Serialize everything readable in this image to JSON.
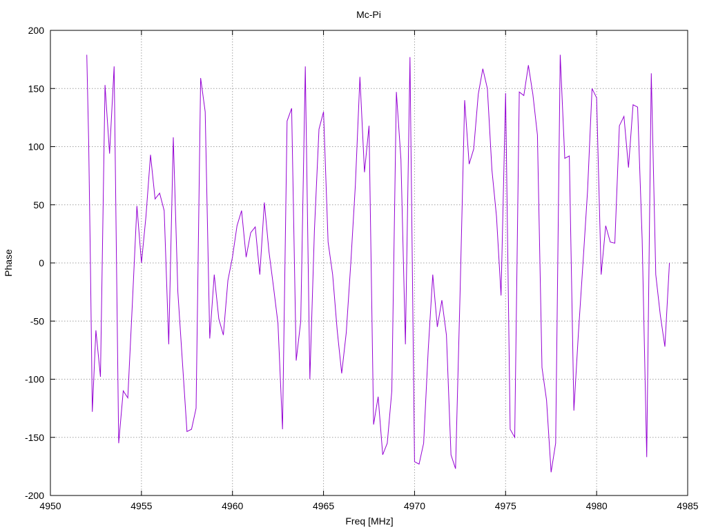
{
  "chart_data": {
    "type": "line",
    "title": "Mc-Pi",
    "xlabel": "Freq [MHz]",
    "ylabel": "Phase",
    "xlim": [
      4950,
      4985
    ],
    "ylim": [
      -200,
      200
    ],
    "xticks": [
      4950,
      4955,
      4960,
      4965,
      4970,
      4975,
      4980,
      4985
    ],
    "yticks": [
      -200,
      -150,
      -100,
      -50,
      0,
      50,
      100,
      150,
      200
    ],
    "grid": true,
    "legend": "none",
    "series": [
      {
        "color": "#9400d3",
        "x": [
          4952.0,
          4952.1,
          4952.2,
          4952.3,
          4952.5,
          4952.75,
          4953.0,
          4953.25,
          4953.5,
          4953.75,
          4954.0,
          4954.25,
          4954.5,
          4954.75,
          4955.0,
          4955.25,
          4955.5,
          4955.75,
          4956.0,
          4956.25,
          4956.5,
          4956.75,
          4957.0,
          4957.25,
          4957.5,
          4957.75,
          4958.0,
          4958.25,
          4958.5,
          4958.75,
          4959.0,
          4959.25,
          4959.5,
          4959.75,
          4960.0,
          4960.25,
          4960.5,
          4960.75,
          4961.0,
          4961.25,
          4961.5,
          4961.75,
          4962.0,
          4962.25,
          4962.5,
          4962.75,
          4963.0,
          4963.25,
          4963.5,
          4963.75,
          4964.0,
          4964.25,
          4964.5,
          4964.75,
          4965.0,
          4965.25,
          4965.5,
          4965.75,
          4966.0,
          4966.25,
          4966.5,
          4966.75,
          4967.0,
          4967.25,
          4967.5,
          4967.75,
          4968.0,
          4968.25,
          4968.5,
          4968.75,
          4969.0,
          4969.25,
          4969.5,
          4969.75,
          4970.0,
          4970.25,
          4970.5,
          4970.75,
          4971.0,
          4971.25,
          4971.5,
          4971.75,
          4972.0,
          4972.25,
          4972.5,
          4972.75,
          4973.0,
          4973.25,
          4973.5,
          4973.75,
          4974.0,
          4974.25,
          4974.5,
          4974.75,
          4975.0,
          4975.25,
          4975.5,
          4975.75,
          4976.0,
          4976.25,
          4976.5,
          4976.75,
          4977.0,
          4977.25,
          4977.5,
          4977.75,
          4978.0,
          4978.25,
          4978.5,
          4978.75,
          4979.0,
          4979.25,
          4979.5,
          4979.75,
          4980.0,
          4980.25,
          4980.5,
          4980.75,
          4981.0,
          4981.25,
          4981.5,
          4981.75,
          4982.0,
          4982.25,
          4982.5,
          4982.75,
          4983.0,
          4983.25,
          4983.5,
          4983.75,
          4984.0
        ],
        "y": [
          179,
          105,
          -2,
          -128,
          -58,
          -98,
          153,
          94,
          169,
          -155,
          -110,
          -116,
          -35,
          49,
          0,
          40,
          93,
          55,
          60,
          45,
          -70,
          108,
          -25,
          -85,
          -145,
          -143,
          -125,
          159,
          130,
          -65,
          -10,
          -48,
          -62,
          -15,
          5,
          32,
          45,
          5,
          26,
          31,
          -10,
          52,
          10,
          -20,
          -52,
          -143,
          122,
          133,
          -84,
          -50,
          169,
          -100,
          28,
          115,
          130,
          18,
          -10,
          -58,
          -95,
          -60,
          0,
          67,
          160,
          78,
          118,
          -139,
          -115,
          -165,
          -155,
          -110,
          147,
          89,
          -70,
          177,
          -171,
          -173,
          -155,
          -75,
          -10,
          -55,
          -32,
          -62,
          -165,
          -177,
          -25,
          140,
          85,
          98,
          145,
          167,
          150,
          80,
          40,
          -28,
          146,
          -143,
          -150,
          147,
          144,
          170,
          145,
          110,
          -90,
          -118,
          -180,
          -155,
          179,
          90,
          92,
          -127,
          -60,
          0,
          62,
          150,
          142,
          -10,
          32,
          18,
          17,
          118,
          126,
          82,
          136,
          134,
          20,
          -167,
          163,
          -10,
          -45,
          -72,
          0
        ]
      }
    ]
  }
}
